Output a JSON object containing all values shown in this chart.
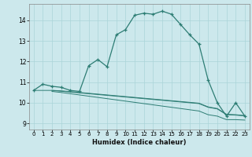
{
  "xlabel": "Humidex (Indice chaleur)",
  "xlim": [
    -0.5,
    23.5
  ],
  "ylim": [
    8.7,
    14.8
  ],
  "yticks": [
    9,
    10,
    11,
    12,
    13,
    14
  ],
  "xticks": [
    0,
    1,
    2,
    3,
    4,
    5,
    6,
    7,
    8,
    9,
    10,
    11,
    12,
    13,
    14,
    15,
    16,
    17,
    18,
    19,
    20,
    21,
    22,
    23
  ],
  "bg_color": "#cce8ec",
  "grid_color": "#aad4d8",
  "line_color": "#2d7d74",
  "curve1_x": [
    0,
    1,
    2,
    3,
    4,
    5,
    6,
    7,
    8,
    9,
    10,
    11,
    12,
    13,
    14,
    15,
    16,
    17,
    18,
    19,
    20,
    21,
    22,
    23
  ],
  "curve1_y": [
    10.6,
    10.9,
    10.8,
    10.75,
    10.6,
    10.55,
    11.8,
    12.1,
    11.75,
    13.3,
    13.55,
    14.25,
    14.35,
    14.3,
    14.45,
    14.3,
    13.8,
    13.3,
    12.85,
    11.1,
    10.0,
    9.35,
    10.0,
    9.35
  ],
  "curve2_x": [
    0,
    2,
    3,
    4,
    5,
    6,
    7,
    8,
    9,
    10,
    11,
    12,
    13,
    14,
    15,
    16,
    17,
    18,
    19,
    20,
    21,
    22,
    23
  ],
  "curve2_y": [
    10.6,
    10.6,
    10.58,
    10.54,
    10.5,
    10.46,
    10.42,
    10.38,
    10.34,
    10.3,
    10.26,
    10.22,
    10.18,
    10.14,
    10.1,
    10.06,
    10.02,
    9.98,
    9.8,
    9.72,
    9.44,
    9.42,
    9.38
  ],
  "curve3_x": [
    2,
    3,
    4,
    5,
    6,
    7,
    8,
    9,
    10,
    11,
    12,
    13,
    14,
    15,
    16,
    17,
    18,
    19,
    20,
    21,
    22,
    23
  ],
  "curve3_y": [
    10.6,
    10.56,
    10.52,
    10.48,
    10.44,
    10.4,
    10.36,
    10.32,
    10.28,
    10.24,
    10.2,
    10.16,
    10.12,
    10.08,
    10.04,
    10.0,
    9.96,
    9.78,
    9.7,
    9.42,
    9.4,
    9.36
  ],
  "curve4_x": [
    2,
    3,
    4,
    5,
    6,
    7,
    8,
    9,
    10,
    11,
    12,
    13,
    14,
    15,
    16,
    17,
    18,
    19,
    20,
    21,
    22,
    23
  ],
  "curve4_y": [
    10.55,
    10.5,
    10.44,
    10.38,
    10.32,
    10.26,
    10.2,
    10.14,
    10.08,
    10.02,
    9.96,
    9.9,
    9.84,
    9.78,
    9.72,
    9.66,
    9.6,
    9.42,
    9.35,
    9.18,
    9.18,
    9.16
  ],
  "marker_x": [
    0,
    1,
    2,
    3,
    4,
    5,
    6,
    7,
    8,
    9,
    10,
    11,
    12,
    13,
    14,
    15,
    16,
    17,
    18,
    19,
    20,
    21,
    22,
    23
  ],
  "marker_y": [
    10.6,
    10.9,
    10.8,
    10.75,
    10.6,
    10.55,
    11.8,
    12.1,
    11.75,
    13.3,
    13.55,
    14.25,
    14.35,
    14.3,
    14.45,
    14.3,
    13.8,
    13.3,
    12.85,
    11.1,
    10.0,
    9.35,
    10.0,
    9.35
  ]
}
